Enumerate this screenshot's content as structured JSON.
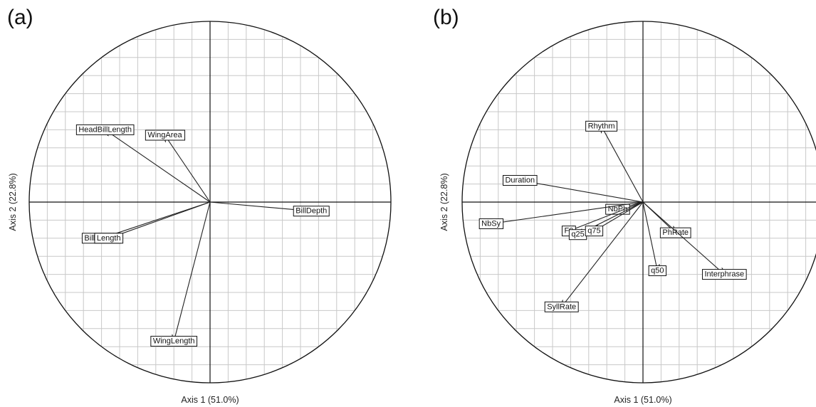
{
  "panel_letters": [
    "(a)",
    "(b)"
  ],
  "chart_data": [
    {
      "type": "scatter",
      "subtype": "correlation-circle",
      "title": "",
      "panel": "(a)",
      "xlabel": "Axis 1 (51.0%)",
      "ylabel": "Axis 2 (22.8%)",
      "xlim": [
        -1,
        1
      ],
      "ylim": [
        -1,
        1
      ],
      "grid": true,
      "variables": [
        {
          "name": "HeadBillLength",
          "x": -0.58,
          "y": 0.4
        },
        {
          "name": "WingArea",
          "x": -0.25,
          "y": 0.37
        },
        {
          "name": "BillDepth",
          "x": 0.56,
          "y": -0.05
        },
        {
          "name": "BillLength",
          "x": -0.6,
          "y": -0.2
        },
        {
          "name": "Length",
          "x": -0.56,
          "y": -0.2
        },
        {
          "name": "WingLength",
          "x": -0.2,
          "y": -0.77
        }
      ]
    },
    {
      "type": "scatter",
      "subtype": "correlation-circle",
      "title": "",
      "panel": "(b)",
      "xlabel": "Axis 1 (51.0%)",
      "ylabel": "Axis 2 (22.8%)",
      "xlim": [
        -1,
        1
      ],
      "ylim": [
        -1,
        1
      ],
      "grid": true,
      "variables": [
        {
          "name": "Rhythm",
          "x": -0.23,
          "y": 0.42
        },
        {
          "name": "Duration",
          "x": -0.68,
          "y": 0.12
        },
        {
          "name": "NbPh",
          "x": -0.14,
          "y": -0.04
        },
        {
          "name": "NbSy",
          "x": -0.84,
          "y": -0.12
        },
        {
          "name": "F0",
          "x": -0.41,
          "y": -0.16
        },
        {
          "name": "q25",
          "x": -0.36,
          "y": -0.18
        },
        {
          "name": "q75",
          "x": -0.27,
          "y": -0.16
        },
        {
          "name": "PhRate",
          "x": 0.18,
          "y": -0.17
        },
        {
          "name": "q50",
          "x": 0.08,
          "y": -0.38
        },
        {
          "name": "Interphrase",
          "x": 0.45,
          "y": -0.4
        },
        {
          "name": "SyllRate",
          "x": -0.45,
          "y": -0.58
        }
      ]
    }
  ]
}
